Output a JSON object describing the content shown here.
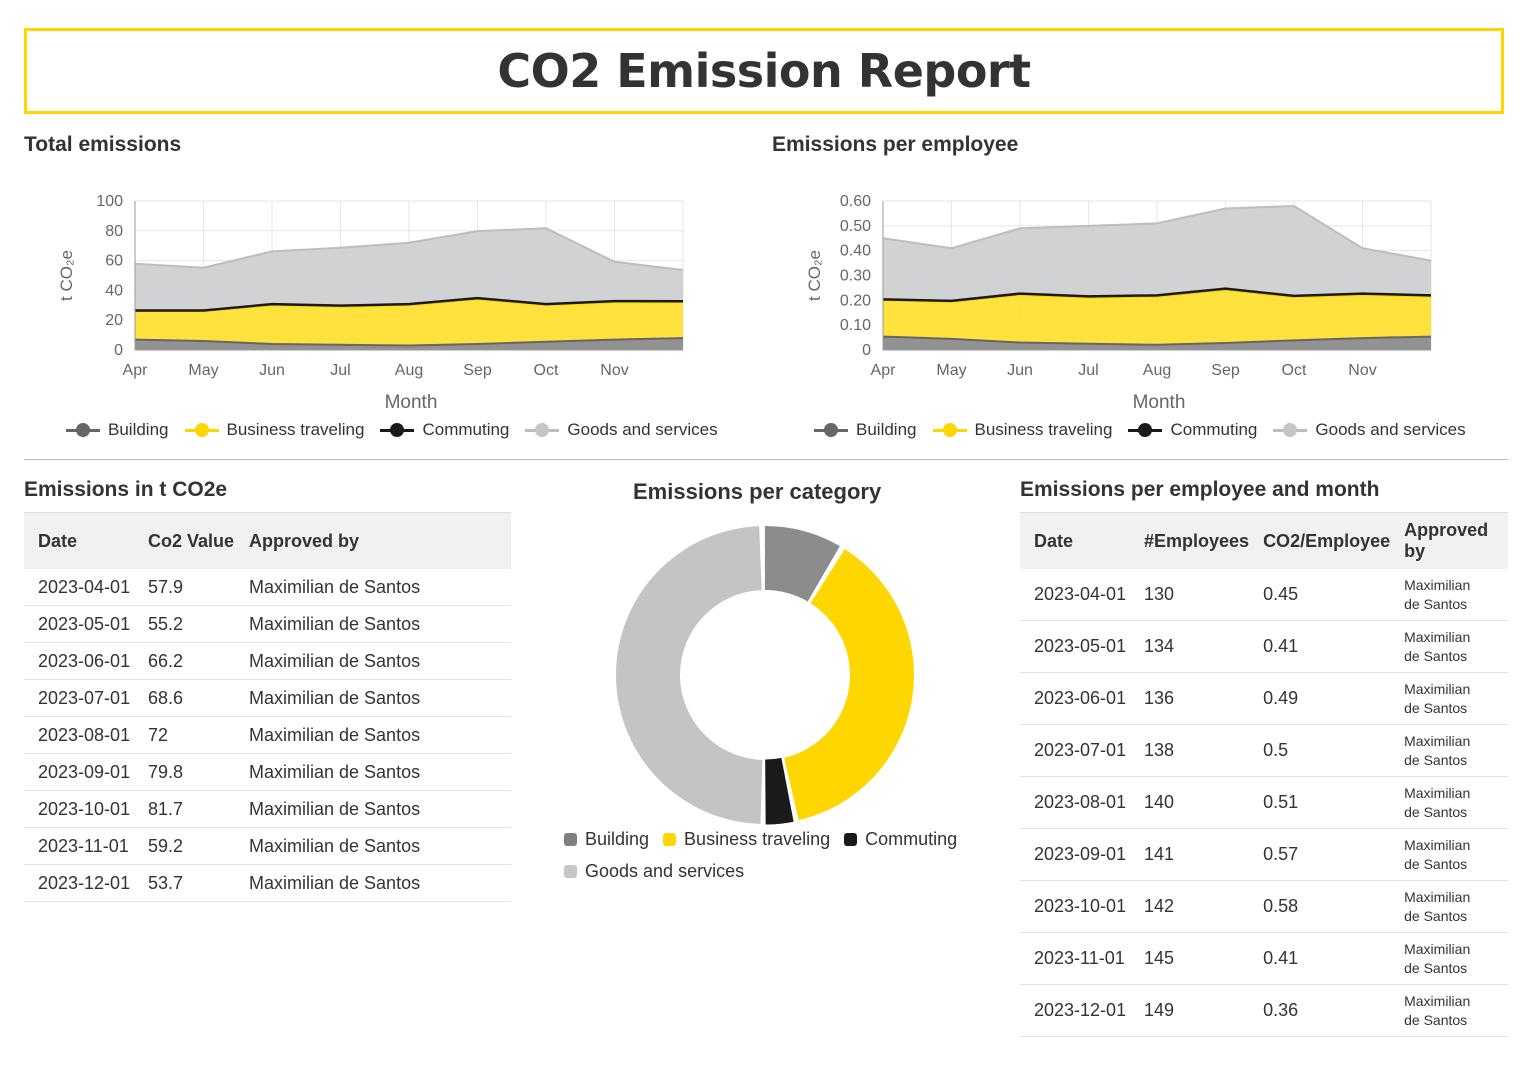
{
  "report": {
    "title": "CO2 Emission Report"
  },
  "colors": {
    "building": "#7f7f7f",
    "business": "#FFD600",
    "commuting": "#1a1a1a",
    "goods": "#c4c6c8",
    "accent": "#FFD600"
  },
  "legend_labels": [
    "Building",
    "Business traveling",
    "Commuting",
    "Goods and services"
  ],
  "chart_data": [
    {
      "type": "area",
      "title": "Total emissions",
      "xlabel": "Month",
      "ylabel": "t CO₂e",
      "x_ticks": [
        "Apr",
        "May",
        "Jun",
        "Jul",
        "Aug",
        "Sep",
        "Oct",
        "Nov"
      ],
      "x": [
        "2023-04",
        "2023-05",
        "2023-06",
        "2023-07",
        "2023-08",
        "2023-09",
        "2023-10",
        "2023-11",
        "2023-12"
      ],
      "ylim": [
        0,
        100
      ],
      "y_ticks": [
        "0",
        "20",
        "40",
        "60",
        "80",
        "100"
      ],
      "stacked": true,
      "grid": true,
      "legend_position": "bottom",
      "series": [
        {
          "name": "Building",
          "values": [
            7,
            6,
            4,
            3.5,
            3,
            4,
            5.5,
            7,
            8
          ]
        },
        {
          "name": "Business traveling",
          "values": [
            19,
            20,
            26,
            25.5,
            27,
            30,
            24.5,
            25,
            24
          ]
        },
        {
          "name": "Commuting",
          "values": [
            0.5,
            0.5,
            0.8,
            0.8,
            0.8,
            0.8,
            0.8,
            0.8,
            0.7
          ]
        },
        {
          "name": "Goods and services",
          "values": [
            31.4,
            28.7,
            35.4,
            38.8,
            41.2,
            45,
            50.9,
            26.4,
            21
          ]
        }
      ]
    },
    {
      "type": "area",
      "title": "Emissions per employee",
      "xlabel": "Month",
      "ylabel": "t CO₂e",
      "x_ticks": [
        "Apr",
        "May",
        "Jun",
        "Jul",
        "Aug",
        "Sep",
        "Oct",
        "Nov"
      ],
      "x": [
        "2023-04",
        "2023-05",
        "2023-06",
        "2023-07",
        "2023-08",
        "2023-09",
        "2023-10",
        "2023-11",
        "2023-12"
      ],
      "ylim": [
        0,
        0.6
      ],
      "y_ticks": [
        "0",
        "0.10",
        "0.20",
        "0.30",
        "0.40",
        "0.50",
        "0.60"
      ],
      "stacked": true,
      "grid": true,
      "legend_position": "bottom",
      "series": [
        {
          "name": "Building",
          "values": [
            0.054,
            0.045,
            0.03,
            0.025,
            0.021,
            0.028,
            0.039,
            0.048,
            0.054
          ]
        },
        {
          "name": "Business traveling",
          "values": [
            0.146,
            0.149,
            0.191,
            0.185,
            0.193,
            0.213,
            0.173,
            0.173,
            0.161
          ]
        },
        {
          "name": "Commuting",
          "values": [
            0.004,
            0.004,
            0.006,
            0.006,
            0.006,
            0.006,
            0.006,
            0.006,
            0.005
          ]
        },
        {
          "name": "Goods and services",
          "values": [
            0.246,
            0.212,
            0.263,
            0.284,
            0.29,
            0.323,
            0.362,
            0.183,
            0.14
          ]
        }
      ]
    },
    {
      "type": "pie",
      "title": "Emissions per category",
      "donut": true,
      "legend_position": "bottom",
      "categories": [
        "Building",
        "Business traveling",
        "Commuting",
        "Goods and services"
      ],
      "values": [
        9,
        38,
        3.5,
        49.5
      ]
    }
  ],
  "table1": {
    "title": "Emissions in t CO2e",
    "columns": [
      "Date",
      "Co2 Value",
      "Approved by"
    ],
    "rows": [
      [
        "2023-04-01",
        "57.9",
        "Maximilian de Santos"
      ],
      [
        "2023-05-01",
        "55.2",
        "Maximilian de Santos"
      ],
      [
        "2023-06-01",
        "66.2",
        "Maximilian de Santos"
      ],
      [
        "2023-07-01",
        "68.6",
        "Maximilian de Santos"
      ],
      [
        "2023-08-01",
        "72",
        "Maximilian de Santos"
      ],
      [
        "2023-09-01",
        "79.8",
        "Maximilian de Santos"
      ],
      [
        "2023-10-01",
        "81.7",
        "Maximilian de Santos"
      ],
      [
        "2023-11-01",
        "59.2",
        "Maximilian de Santos"
      ],
      [
        "2023-12-01",
        "53.7",
        "Maximilian de Santos"
      ]
    ]
  },
  "table2": {
    "title": "Emissions per employee and month",
    "columns": [
      "Date",
      "#Employees",
      "CO2/Employee",
      "Approved by"
    ],
    "rows": [
      [
        "2023-04-01",
        "130",
        "0.45",
        "Maximilian de Santos"
      ],
      [
        "2023-05-01",
        "134",
        "0.41",
        "Maximilian de Santos"
      ],
      [
        "2023-06-01",
        "136",
        "0.49",
        "Maximilian de Santos"
      ],
      [
        "2023-07-01",
        "138",
        "0.5",
        "Maximilian de Santos"
      ],
      [
        "2023-08-01",
        "140",
        "0.51",
        "Maximilian de Santos"
      ],
      [
        "2023-09-01",
        "141",
        "0.57",
        "Maximilian de Santos"
      ],
      [
        "2023-10-01",
        "142",
        "0.58",
        "Maximilian de Santos"
      ],
      [
        "2023-11-01",
        "145",
        "0.41",
        "Maximilian de Santos"
      ],
      [
        "2023-12-01",
        "149",
        "0.36",
        "Maximilian de Santos"
      ]
    ]
  }
}
